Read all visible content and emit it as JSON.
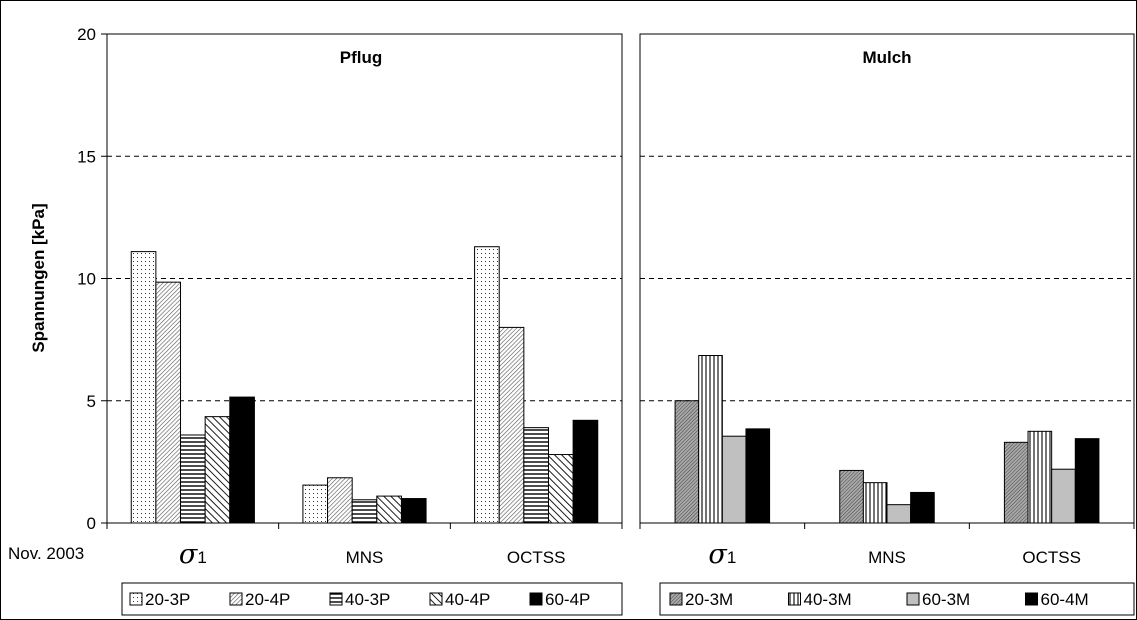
{
  "note": "Nov. 2003",
  "colors": {
    "bar_stroke": "#000000",
    "grid": "#000000",
    "axis": "#000000"
  },
  "chart_data": {
    "type": "bar",
    "ylabel": "Spannungen [kPa]",
    "ylim": [
      0,
      20
    ],
    "yticks": [
      0,
      5,
      10,
      15,
      20
    ],
    "grid": "dashed horizontal at 5, 10, 15",
    "legend_placement": "bottom",
    "panels": [
      {
        "title": "Pflug",
        "categories": [
          "σ1",
          "MNS",
          "OCTSS"
        ],
        "series": [
          {
            "name": "20-3P",
            "pattern": "dots",
            "values": [
              11.1,
              1.55,
              11.3
            ]
          },
          {
            "name": "20-4P",
            "pattern": "diag-fine",
            "values": [
              9.85,
              1.85,
              8.0
            ]
          },
          {
            "name": "40-3P",
            "pattern": "hlines",
            "values": [
              3.6,
              0.95,
              3.9
            ]
          },
          {
            "name": "40-4P",
            "pattern": "diag-back",
            "values": [
              4.35,
              1.1,
              2.8
            ]
          },
          {
            "name": "60-4P",
            "pattern": "solid-black",
            "values": [
              5.15,
              1.0,
              4.2
            ]
          }
        ]
      },
      {
        "title": "Mulch",
        "categories": [
          "σ1",
          "MNS",
          "OCTSS"
        ],
        "series": [
          {
            "name": "20-3M",
            "pattern": "diag-dense",
            "values": [
              5.0,
              2.15,
              3.3
            ]
          },
          {
            "name": "40-3M",
            "pattern": "vlines",
            "values": [
              6.85,
              1.65,
              3.75
            ]
          },
          {
            "name": "60-3M",
            "pattern": "solid-gray",
            "values": [
              3.55,
              0.75,
              2.2
            ]
          },
          {
            "name": "60-4M",
            "pattern": "solid-black",
            "values": [
              3.85,
              1.25,
              3.45
            ]
          }
        ]
      }
    ]
  }
}
